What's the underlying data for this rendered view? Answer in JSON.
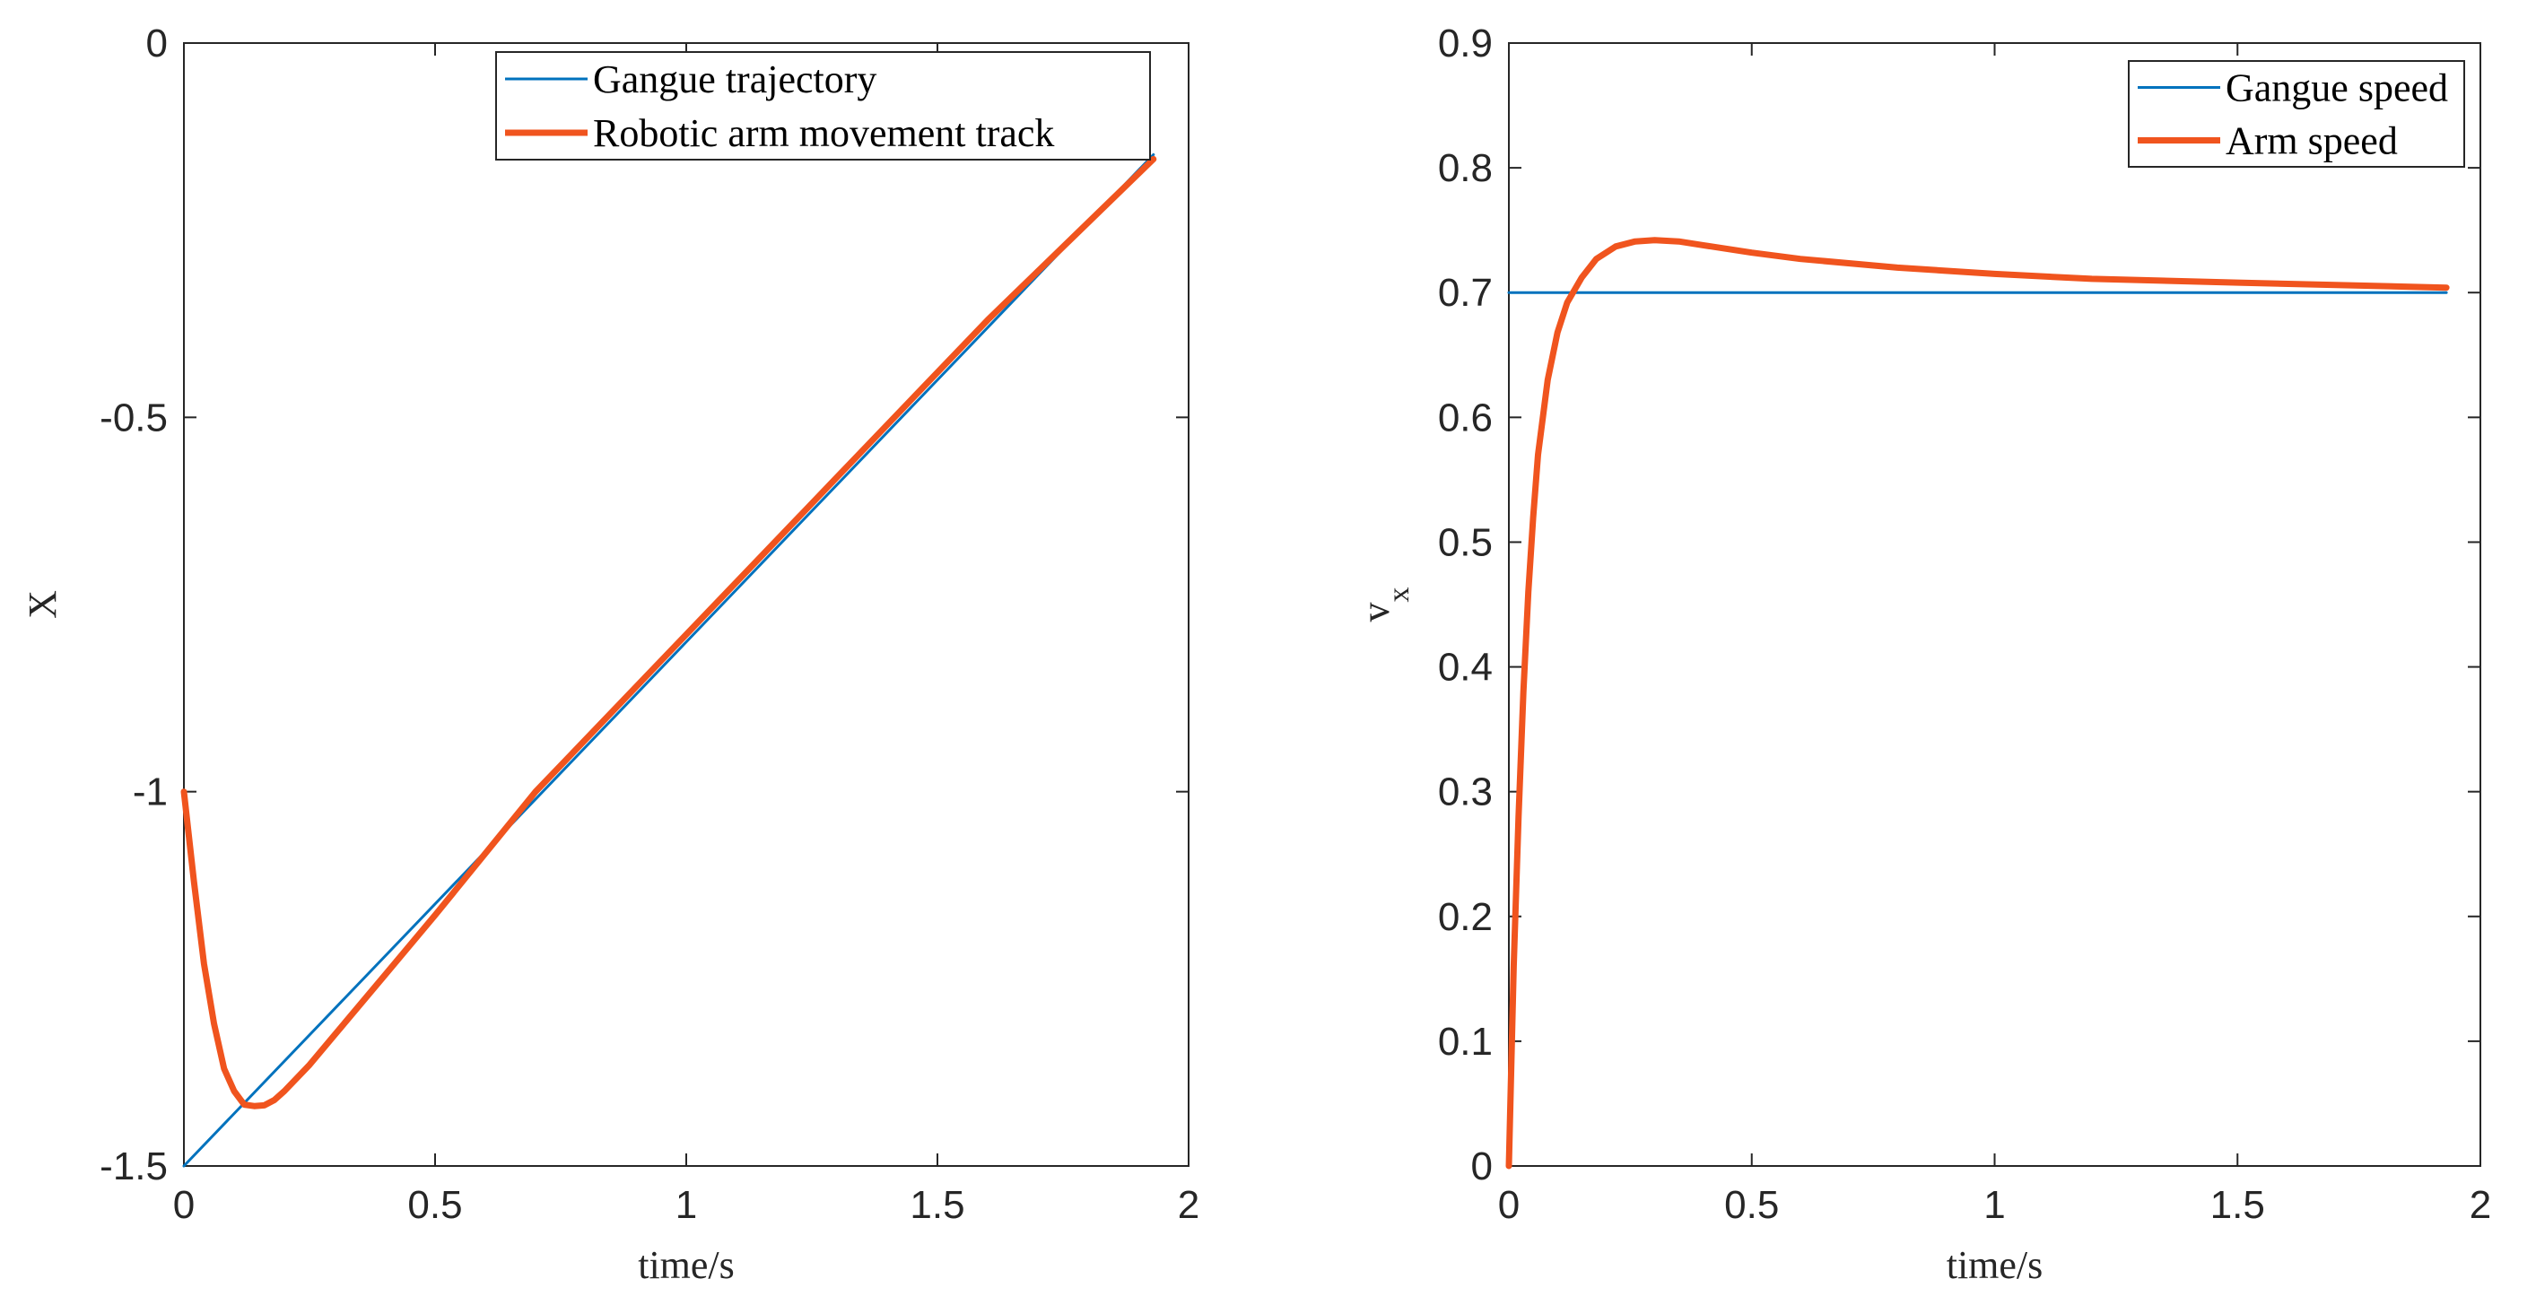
{
  "chart_data": [
    {
      "type": "line",
      "xlabel": "time/s",
      "ylabel": "X",
      "xlim": [
        0,
        2
      ],
      "ylim": [
        -1.5,
        0
      ],
      "xticks": [
        "0",
        "0.5",
        "1",
        "1.5",
        "2"
      ],
      "yticks": [
        "-1.5",
        "-1",
        "-0.5",
        "0"
      ],
      "grid": false,
      "legend_position": "top-right",
      "series": [
        {
          "name": "Gangue trajectory",
          "color": "#0072BD",
          "x": [
            0,
            1.93
          ],
          "y": [
            -1.5,
            -0.149
          ]
        },
        {
          "name": "Robotic arm movement track",
          "color": "#F0541E",
          "x": [
            0,
            0.02,
            0.04,
            0.06,
            0.08,
            0.1,
            0.12,
            0.14,
            0.16,
            0.18,
            0.2,
            0.25,
            0.3,
            0.4,
            0.5,
            0.7,
            1.0,
            1.3,
            1.6,
            1.93
          ],
          "y": [
            -1.0,
            -1.12,
            -1.23,
            -1.31,
            -1.37,
            -1.4,
            -1.418,
            -1.42,
            -1.419,
            -1.412,
            -1.4,
            -1.365,
            -1.325,
            -1.245,
            -1.165,
            -1.0,
            -0.79,
            -0.58,
            -0.37,
            -0.155
          ]
        }
      ]
    },
    {
      "type": "line",
      "xlabel": "time/s",
      "ylabel": "v",
      "ylabel_subscript": "x",
      "xlim": [
        0,
        2
      ],
      "ylim": [
        0,
        0.9
      ],
      "xticks": [
        "0",
        "0.5",
        "1",
        "1.5",
        "2"
      ],
      "yticks": [
        "0",
        "0.1",
        "0.2",
        "0.3",
        "0.4",
        "0.5",
        "0.6",
        "0.7",
        "0.8",
        "0.9"
      ],
      "grid": false,
      "legend_position": "top-right",
      "series": [
        {
          "name": "Gangue speed",
          "color": "#0072BD",
          "x": [
            0,
            1.93
          ],
          "y": [
            0.7,
            0.7
          ]
        },
        {
          "name": "Arm speed",
          "color": "#F0541E",
          "x": [
            0,
            0.005,
            0.01,
            0.02,
            0.03,
            0.04,
            0.05,
            0.06,
            0.08,
            0.1,
            0.12,
            0.15,
            0.18,
            0.22,
            0.26,
            0.3,
            0.35,
            0.4,
            0.5,
            0.6,
            0.8,
            1.0,
            1.2,
            1.5,
            1.93
          ],
          "y": [
            0,
            0.08,
            0.16,
            0.28,
            0.38,
            0.46,
            0.52,
            0.57,
            0.63,
            0.668,
            0.692,
            0.712,
            0.727,
            0.737,
            0.741,
            0.742,
            0.741,
            0.738,
            0.732,
            0.727,
            0.72,
            0.715,
            0.711,
            0.708,
            0.704
          ]
        }
      ]
    }
  ]
}
